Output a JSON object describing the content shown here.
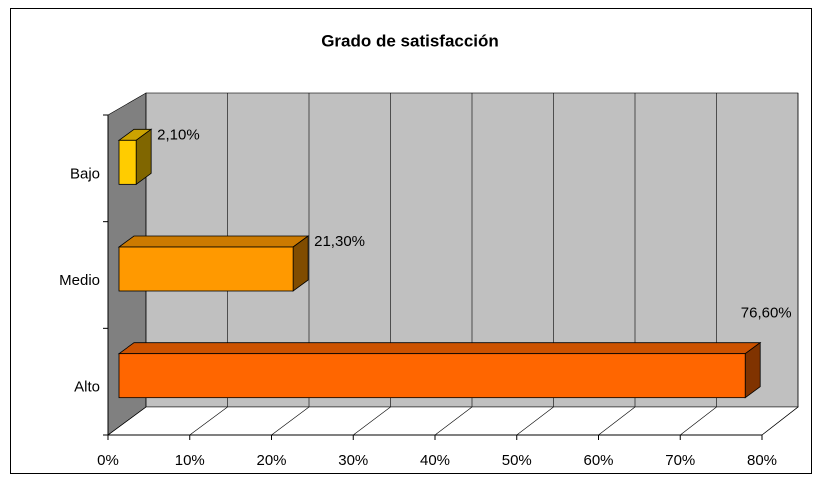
{
  "chart_data": {
    "type": "bar",
    "orientation": "horizontal",
    "title": "Grado de satisfacción",
    "categories": [
      "Bajo",
      "Medio",
      "Alto"
    ],
    "values": [
      2.1,
      21.3,
      76.6
    ],
    "value_labels": [
      "2,10%",
      "21,30%",
      "76,60%"
    ],
    "colors": [
      "#ffcc00",
      "#ff9900",
      "#ff6600"
    ],
    "xlim": [
      0,
      80
    ],
    "xticks": [
      {
        "value": 0,
        "label": "0%"
      },
      {
        "value": 10,
        "label": "10%"
      },
      {
        "value": 20,
        "label": "20%"
      },
      {
        "value": 30,
        "label": "30%"
      },
      {
        "value": 40,
        "label": "40%"
      },
      {
        "value": 50,
        "label": "50%"
      },
      {
        "value": 60,
        "label": "60%"
      },
      {
        "value": 70,
        "label": "70%"
      },
      {
        "value": 80,
        "label": "80%"
      }
    ],
    "grid": true
  }
}
